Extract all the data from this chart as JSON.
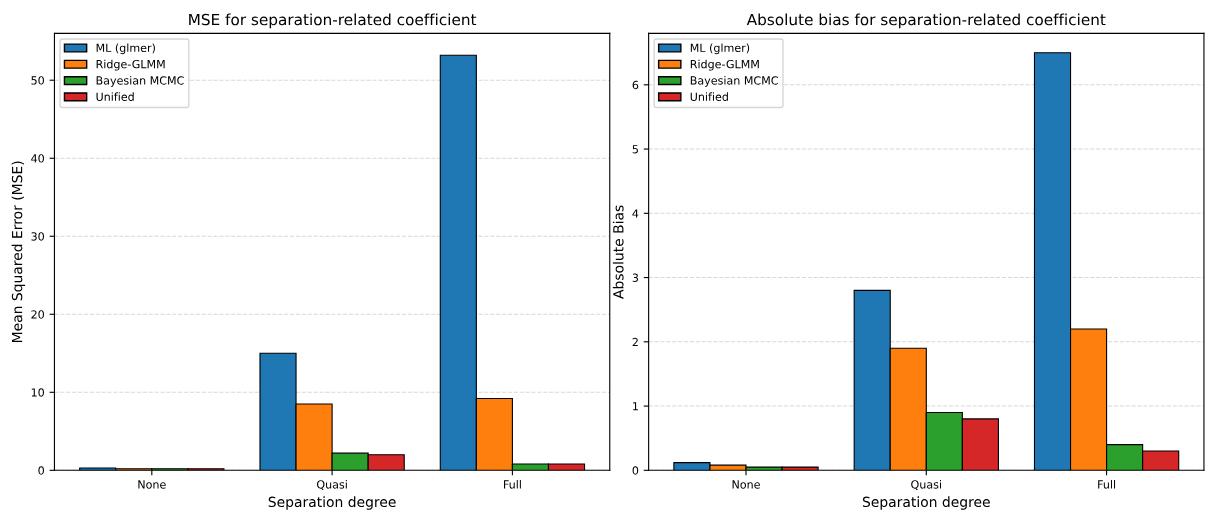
{
  "chart_data": [
    {
      "type": "bar",
      "title": "MSE for separation-related coefficient",
      "xlabel": "Separation degree",
      "ylabel": "Mean Squared Error (MSE)",
      "categories": [
        "None",
        "Quasi",
        "Full"
      ],
      "series": [
        {
          "name": "ML (glmer)",
          "color": "#1f77b4",
          "values": [
            0.3,
            15.0,
            53.2
          ]
        },
        {
          "name": "Ridge-GLMM",
          "color": "#ff7f0e",
          "values": [
            0.2,
            8.5,
            9.2
          ]
        },
        {
          "name": "Bayesian MCMC",
          "color": "#2ca02c",
          "values": [
            0.2,
            2.2,
            0.8
          ]
        },
        {
          "name": "Unified",
          "color": "#d62728",
          "values": [
            0.2,
            2.0,
            0.8
          ]
        }
      ],
      "ylim": [
        0,
        56
      ],
      "yticks": [
        0,
        10,
        20,
        30,
        40,
        50
      ],
      "grid": "y",
      "legend": "top left"
    },
    {
      "type": "bar",
      "title": "Absolute bias for separation-related coefficient",
      "xlabel": "Separation degree",
      "ylabel": "Absolute Bias",
      "categories": [
        "None",
        "Quasi",
        "Full"
      ],
      "series": [
        {
          "name": "ML (glmer)",
          "color": "#1f77b4",
          "values": [
            0.12,
            2.8,
            6.5
          ]
        },
        {
          "name": "Ridge-GLMM",
          "color": "#ff7f0e",
          "values": [
            0.08,
            1.9,
            2.2
          ]
        },
        {
          "name": "Bayesian MCMC",
          "color": "#2ca02c",
          "values": [
            0.05,
            0.9,
            0.4
          ]
        },
        {
          "name": "Unified",
          "color": "#d62728",
          "values": [
            0.05,
            0.8,
            0.3
          ]
        }
      ],
      "ylim": [
        0,
        6.8
      ],
      "yticks": [
        0,
        1,
        2,
        3,
        4,
        5,
        6
      ],
      "grid": "y",
      "legend": "top left"
    }
  ]
}
